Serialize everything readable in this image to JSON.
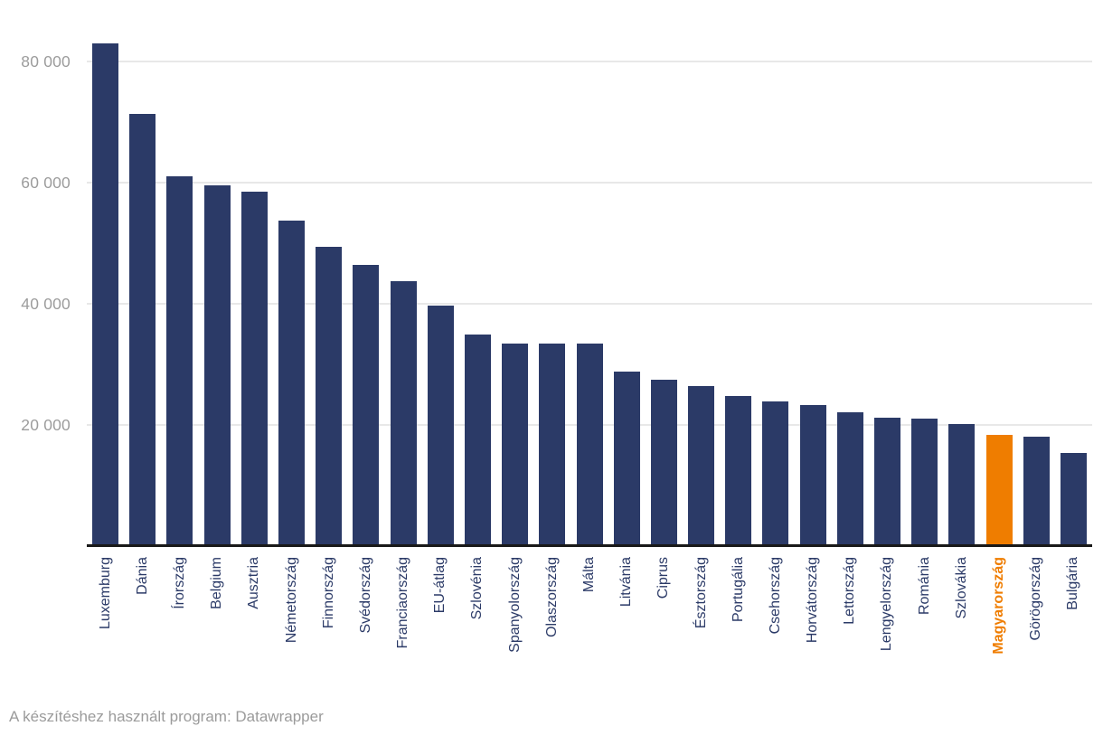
{
  "chart_data": {
    "type": "bar",
    "title": "",
    "categories": [
      "Luxemburg",
      "Dánia",
      "Írország",
      "Belgium",
      "Ausztria",
      "Németország",
      "Finnország",
      "Svédország",
      "Franciaország",
      "EU-átlag",
      "Szlovénia",
      "Spanyolország",
      "Olaszország",
      "Málta",
      "Litvánia",
      "Ciprus",
      "Észtország",
      "Portugália",
      "Csehország",
      "Horvátország",
      "Lettország",
      "Lengyelország",
      "Románia",
      "Szlovákia",
      "Magyarország",
      "Görögország",
      "Bulgária"
    ],
    "values": [
      83000,
      71400,
      61100,
      59500,
      58500,
      53700,
      49400,
      46400,
      43700,
      39700,
      35000,
      33500,
      33400,
      33500,
      28800,
      27500,
      26400,
      24800,
      23900,
      23300,
      22100,
      21200,
      21000,
      20200,
      18400,
      18000,
      15300
    ],
    "highlight_category": "Magyarország",
    "xlabel": "",
    "ylabel": "",
    "ylim": [
      0,
      88000
    ],
    "yticks": [
      20000,
      40000,
      60000,
      80000
    ],
    "ytick_labels": [
      "20 000",
      "40 000",
      "60 000",
      "80 000"
    ],
    "grid": "horizontal",
    "legend_position": "none",
    "bar_color": "#2b3a67",
    "highlight_color": "#ef7d00"
  },
  "footer": {
    "attribution": "A készítéshez használt program: Datawrapper"
  },
  "colors": {
    "bar": "#2b3a67",
    "highlight": "#ef7d00",
    "axis_line": "#191919",
    "gridline": "#e8e8e8",
    "ytick_text": "#9c9c9c",
    "xlabel_text": "#2b3a67",
    "footer_text": "#9b9b9b",
    "background": "#ffffff"
  }
}
